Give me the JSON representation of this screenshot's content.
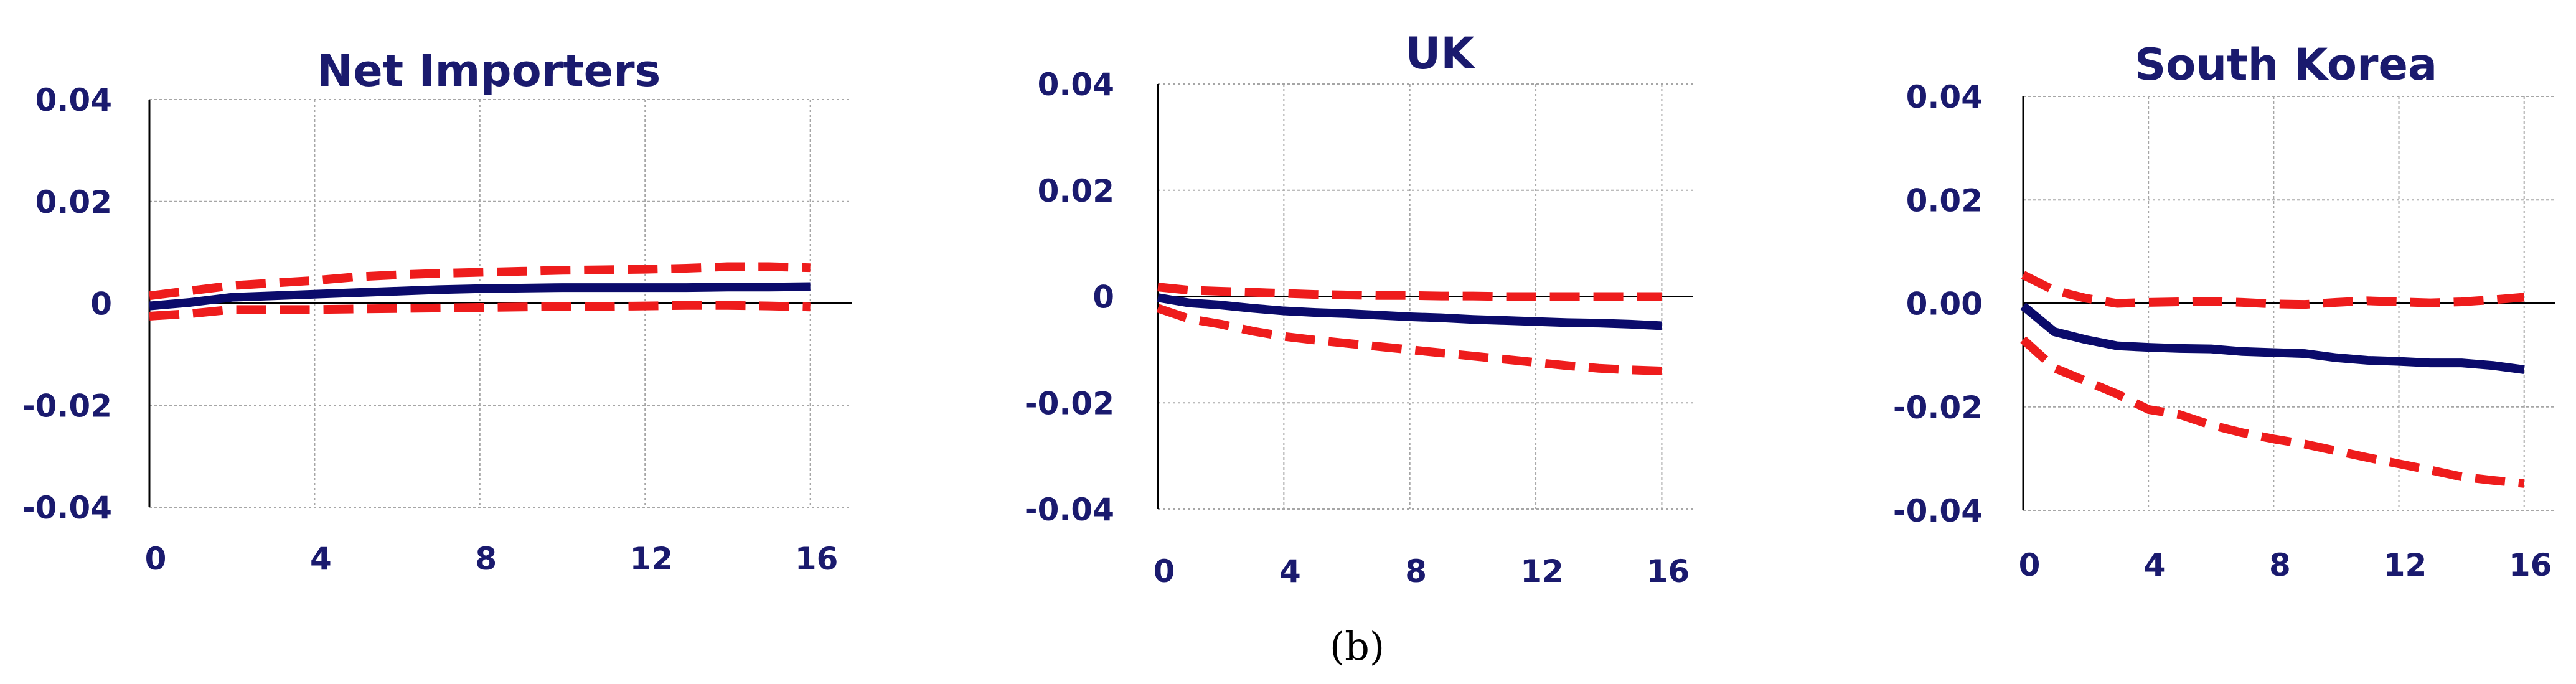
{
  "caption": "(b)",
  "colors": {
    "impulse": "#0b0b6b",
    "band": "#ee1c1c",
    "text": "#1a1a6e"
  },
  "chart_data": [
    {
      "type": "line",
      "title": "Net Importers",
      "xlabel": "",
      "ylabel": "",
      "xlim": [
        0,
        17
      ],
      "ylim": [
        -0.04,
        0.04
      ],
      "x_ticks": [
        0,
        4,
        8,
        12,
        16
      ],
      "x_tick_labels": [
        "0",
        "4",
        "8",
        "12",
        "16"
      ],
      "y_ticks": [
        0.04,
        0.02,
        0,
        -0.02,
        -0.04
      ],
      "y_tick_labels": [
        "0.04",
        "0.02",
        "0",
        "-0.02",
        "-0.04"
      ],
      "grid": true,
      "x": [
        0,
        1,
        2,
        3,
        4,
        5,
        6,
        7,
        8,
        9,
        10,
        11,
        12,
        13,
        14,
        15,
        16
      ],
      "series": [
        {
          "role": "upper",
          "style": "dashed",
          "values": [
            0.0015,
            0.0025,
            0.0035,
            0.004,
            0.0045,
            0.0052,
            0.0056,
            0.0059,
            0.0061,
            0.0063,
            0.0065,
            0.0066,
            0.0067,
            0.0069,
            0.0072,
            0.0072,
            0.007
          ]
        },
        {
          "role": "irf",
          "style": "solid",
          "values": [
            -0.0005,
            0.0002,
            0.0012,
            0.0015,
            0.0018,
            0.0021,
            0.0024,
            0.0027,
            0.0029,
            0.003,
            0.0031,
            0.0031,
            0.0031,
            0.0031,
            0.0032,
            0.0032,
            0.0033
          ]
        },
        {
          "role": "lower",
          "style": "dashed",
          "values": [
            -0.0025,
            -0.002,
            -0.0012,
            -0.0012,
            -0.0012,
            -0.0011,
            -0.001,
            -0.0009,
            -0.0008,
            -0.0007,
            -0.0006,
            -0.0006,
            -0.0005,
            -0.0004,
            -0.0004,
            -0.0005,
            -0.0007
          ]
        }
      ]
    },
    {
      "type": "line",
      "title": "UK",
      "xlabel": "",
      "ylabel": "",
      "xlim": [
        0,
        17
      ],
      "ylim": [
        -0.04,
        0.04
      ],
      "x_ticks": [
        0,
        4,
        8,
        12,
        16
      ],
      "x_tick_labels": [
        "0",
        "4",
        "8",
        "12",
        "16"
      ],
      "y_ticks": [
        0.04,
        0.02,
        0,
        -0.02,
        -0.04
      ],
      "y_tick_labels": [
        "0.04",
        "0.02",
        "0",
        "-0.02",
        "-0.04"
      ],
      "grid": true,
      "x": [
        0,
        1,
        2,
        3,
        4,
        5,
        6,
        7,
        8,
        9,
        10,
        11,
        12,
        13,
        14,
        15,
        16
      ],
      "series": [
        {
          "role": "upper",
          "style": "dashed",
          "values": [
            0.0018,
            0.0012,
            0.001,
            0.0008,
            0.0006,
            0.0004,
            0.0003,
            0.0002,
            0.0002,
            0.0001,
            0.0001,
            0.0,
            0.0,
            0.0,
            0.0,
            0.0,
            0.0
          ]
        },
        {
          "role": "irf",
          "style": "solid",
          "values": [
            -0.0002,
            -0.0012,
            -0.0016,
            -0.0022,
            -0.0027,
            -0.003,
            -0.0032,
            -0.0035,
            -0.0038,
            -0.004,
            -0.0043,
            -0.0045,
            -0.0047,
            -0.0049,
            -0.005,
            -0.0052,
            -0.0055
          ]
        },
        {
          "role": "lower",
          "style": "dashed",
          "values": [
            -0.0022,
            -0.0042,
            -0.0052,
            -0.0065,
            -0.0075,
            -0.0082,
            -0.0088,
            -0.0094,
            -0.01,
            -0.0106,
            -0.0112,
            -0.0118,
            -0.0124,
            -0.013,
            -0.0135,
            -0.0138,
            -0.014
          ]
        }
      ]
    },
    {
      "type": "line",
      "title": "South Korea",
      "xlabel": "",
      "ylabel": "",
      "xlim": [
        0,
        17
      ],
      "ylim": [
        -0.04,
        0.04
      ],
      "x_ticks": [
        0,
        4,
        8,
        12,
        16
      ],
      "x_tick_labels": [
        "0",
        "4",
        "8",
        "12",
        "16"
      ],
      "y_ticks": [
        0.04,
        0.02,
        0.0,
        -0.02,
        -0.04
      ],
      "y_tick_labels": [
        "0.04",
        "0.02",
        "0.00",
        "-0.02",
        "-0.04"
      ],
      "grid": true,
      "x": [
        0,
        1,
        2,
        3,
        4,
        5,
        6,
        7,
        8,
        9,
        10,
        11,
        12,
        13,
        14,
        15,
        16
      ],
      "series": [
        {
          "role": "upper",
          "style": "dashed",
          "values": [
            0.0055,
            0.0025,
            0.001,
            0.0,
            0.0002,
            0.0003,
            0.0004,
            0.0002,
            -0.0001,
            -0.0002,
            0.0002,
            0.0005,
            0.0003,
            0.0001,
            0.0003,
            0.0007,
            0.0012
          ]
        },
        {
          "role": "irf",
          "style": "solid",
          "values": [
            -0.0005,
            -0.0055,
            -0.007,
            -0.0082,
            -0.0085,
            -0.0087,
            -0.0088,
            -0.0093,
            -0.0095,
            -0.0097,
            -0.0105,
            -0.011,
            -0.0112,
            -0.0115,
            -0.0115,
            -0.012,
            -0.0128
          ]
        },
        {
          "role": "lower",
          "style": "dashed",
          "values": [
            -0.007,
            -0.0125,
            -0.015,
            -0.0175,
            -0.0205,
            -0.0215,
            -0.0235,
            -0.025,
            -0.0262,
            -0.0272,
            -0.0285,
            -0.0298,
            -0.031,
            -0.0322,
            -0.0335,
            -0.0342,
            -0.0348
          ]
        }
      ]
    }
  ]
}
